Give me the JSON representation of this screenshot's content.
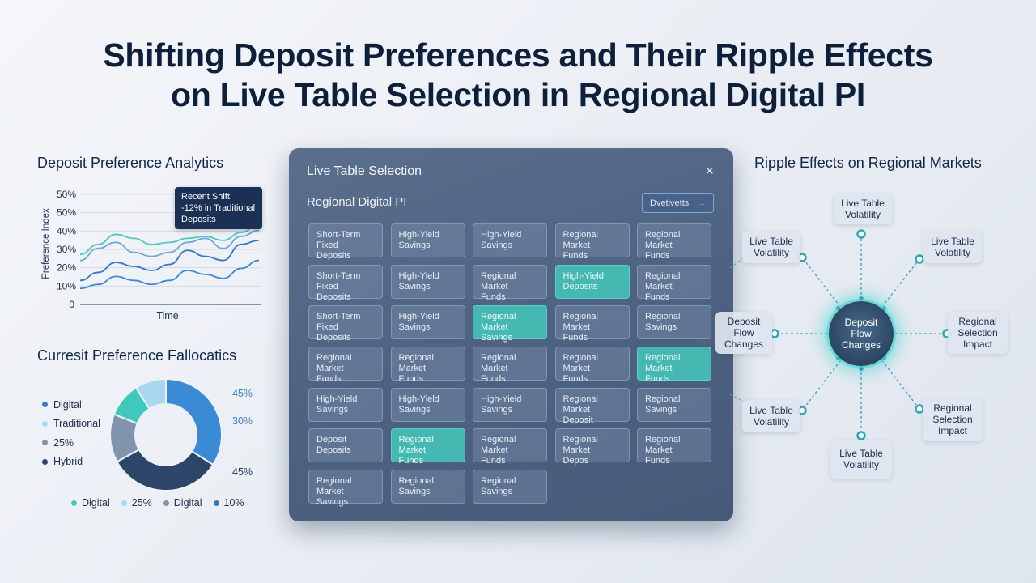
{
  "title": {
    "line1": "Shifting Deposit Preferences and Their Ripple Effects",
    "line2": "on Live Table Selection in Regional Digital PI"
  },
  "analytics": {
    "title": "Deposit Preference Analytics",
    "callout": [
      "Recent Shift:",
      "-12% in Traditional",
      "Deposits"
    ]
  },
  "allocations": {
    "title": "Curresit Preference Fallocatics",
    "legend": [
      "Digital",
      "Traditional",
      "25%",
      "Hybrid"
    ],
    "pct_labels": [
      "45%",
      "30%",
      "45%"
    ],
    "bottom_legend": [
      "Digital",
      "25%",
      "Digital",
      "10%"
    ]
  },
  "panel": {
    "title": "Live Table Selection",
    "close": "×",
    "subtitle": "Regional Digital PI",
    "view_button": "Dvetivetts",
    "view_arrow": "→",
    "cells": [
      [
        "Short-Term",
        "Fixed Deposits"
      ],
      [
        "High-Yield",
        "Savings"
      ],
      [
        "High-Yield",
        "Savings"
      ],
      [
        "Regional Market",
        "Funds"
      ],
      [
        "Regional Market",
        "Funds"
      ],
      [
        "Short-Term",
        "Fixed Deposits"
      ],
      [
        "High-Yield",
        "Savings"
      ],
      [
        "Regional Market",
        "Funds"
      ],
      [
        "High-Yield",
        "Deposits"
      ],
      [
        "Regional Market",
        "Funds"
      ],
      [
        "Short-Term",
        "Fixed Deposits"
      ],
      [
        "High-Yield",
        "Savings"
      ],
      [
        "Regional Market",
        "Savings"
      ],
      [
        "Regional Market",
        "Funds"
      ],
      [
        "Regional",
        "Savings"
      ],
      [
        "Regional Market",
        "Funds"
      ],
      [
        "Regional Market",
        "Funds"
      ],
      [
        "Regional Market",
        "Funds"
      ],
      [
        "Regional Market",
        "Funds"
      ],
      [
        "Regional Market",
        "Funds"
      ],
      [
        "High-Yield",
        "Savings"
      ],
      [
        "High-Yield",
        "Savings"
      ],
      [
        "High-Yield",
        "Savings"
      ],
      [
        "Regional Market",
        "Deposit"
      ],
      [
        "Regional",
        "Savings"
      ],
      [
        "Deposit",
        "Deposits"
      ],
      [
        "Regional Market",
        "Funds"
      ],
      [
        "Regional Market",
        "Funds"
      ],
      [
        "Regional Market",
        "Depos"
      ],
      [
        "Regional Market",
        "Funds"
      ],
      [
        "Regional Market",
        "Savings"
      ],
      [
        "Regional",
        "Savings"
      ],
      [
        "Regional",
        "Savings"
      ]
    ],
    "highlighted": [
      8,
      12,
      19,
      26
    ]
  },
  "ripple": {
    "title": "Ripple Effects on Regional Markets",
    "hub": [
      "Deposit",
      "Flow",
      "Changes"
    ],
    "nodes": [
      [
        "Live Table",
        "Volatility"
      ],
      [
        "Live Table",
        "Volatility"
      ],
      [
        "Live Table",
        "Volatility"
      ],
      [
        "Deposit",
        "Flow",
        "Changes"
      ],
      [
        "Regional",
        "Selection",
        "Impact"
      ],
      [
        "Live Table",
        "Volatility"
      ],
      [
        "Regional",
        "Selection",
        "Impact"
      ],
      [
        "Live Table",
        "Volatility"
      ]
    ]
  },
  "chart_data": [
    {
      "type": "line",
      "title": "Deposit Preference Analytics",
      "xlabel": "Time",
      "ylabel": "Preference Index",
      "yticks": [
        "0",
        "10%",
        "20%",
        "30%",
        "40%",
        "50%",
        "50%"
      ],
      "x": [
        0,
        1,
        2,
        3,
        4,
        5,
        6,
        7,
        8,
        9,
        10
      ],
      "series": [
        {
          "values": [
            25,
            30,
            35,
            33,
            30,
            31,
            33,
            34,
            32,
            36,
            40
          ],
          "color": "#52c7c2"
        },
        {
          "values": [
            22,
            28,
            31,
            26,
            24,
            26,
            31,
            33,
            28,
            34,
            37
          ],
          "color": "#6fa8dc"
        },
        {
          "values": [
            12,
            16,
            21,
            19,
            17,
            20,
            27,
            24,
            22,
            30,
            32
          ],
          "color": "#2f79c6"
        },
        {
          "values": [
            8,
            10,
            14,
            12,
            10,
            12,
            17,
            15,
            13,
            18,
            22
          ],
          "color": "#3d8ad6"
        }
      ],
      "ylim": [
        0,
        55
      ]
    },
    {
      "type": "pie",
      "donut": true,
      "slices": [
        {
          "value": 34,
          "color": "#3a8ad6"
        },
        {
          "value": 33,
          "color": "#2c4568"
        },
        {
          "value": 14,
          "color": "#8194ad"
        },
        {
          "value": 10,
          "color": "#3fc9bd"
        },
        {
          "value": 9,
          "color": "#a9d7f1"
        }
      ]
    }
  ],
  "colors": {
    "legend_dots": [
      "#2f7fce",
      "#a9d7f1",
      "#8194ad",
      "#2c4568"
    ],
    "bottom_dots": [
      "#3fc9bd",
      "#a9d7f1",
      "#8194ad",
      "#2f79c6"
    ]
  }
}
